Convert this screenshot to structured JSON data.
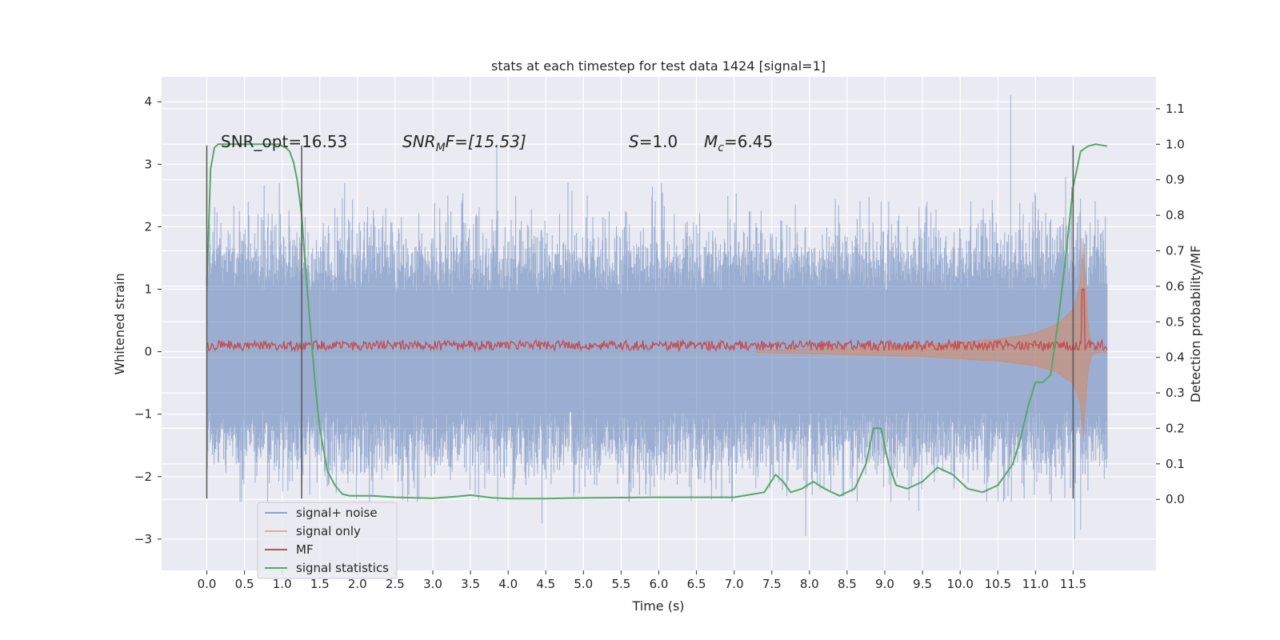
{
  "chart_data": {
    "type": "line",
    "title": "stats at each timestep for test data 1424 [signal=1]",
    "xlabel": "Time (s)",
    "ylabel_left": "Whitened strain",
    "ylabel_right": "Detection probability/MF",
    "xlim": [
      -0.6,
      12.6
    ],
    "ylim_left": [
      -3.5,
      4.4
    ],
    "ylim_right": [
      -0.2,
      1.19
    ],
    "x_ticks": [
      0.0,
      0.5,
      1.0,
      1.5,
      2.0,
      2.5,
      3.0,
      3.5,
      4.0,
      4.5,
      5.0,
      5.5,
      6.0,
      6.5,
      7.0,
      7.5,
      8.0,
      8.5,
      9.0,
      9.5,
      10.0,
      10.5,
      11.0,
      11.5
    ],
    "x_tick_labels": [
      "0.0",
      "0.5",
      "1.0",
      "1.5",
      "2.0",
      "2.5",
      "3.0",
      "3.5",
      "4.0",
      "4.5",
      "5.0",
      "5.5",
      "6.0",
      "6.5",
      "7.0",
      "7.5",
      "8.0",
      "8.5",
      "9.0",
      "9.5",
      "10.0",
      "10.5",
      "11.0",
      "11.5"
    ],
    "y_left_ticks": [
      -3,
      -2,
      -1,
      0,
      1,
      2,
      3,
      4
    ],
    "y_left_tick_labels": [
      "−3",
      "−2",
      "−1",
      "0",
      "1",
      "2",
      "3",
      "4"
    ],
    "y_right_ticks": [
      0.0,
      0.1,
      0.2,
      0.3,
      0.4,
      0.5,
      0.6,
      0.7,
      0.8,
      0.9,
      1.0,
      1.1
    ],
    "y_right_tick_labels": [
      "0.0",
      "0.1",
      "0.2",
      "0.3",
      "0.4",
      "0.5",
      "0.6",
      "0.7",
      "0.8",
      "0.9",
      "1.0",
      "1.1"
    ],
    "grid": true,
    "legend_position": "lower-left",
    "annotations": {
      "snr_opt": "SNR_opt=16.53",
      "snr_mf_name": "SNR",
      "snr_mf_sub": "M",
      "snr_mf_rest": "F=[15.53]",
      "s_name": "S",
      "s_rest": "=1.0",
      "mc_name": "M",
      "mc_sub": "c",
      "mc_rest": "=6.45"
    },
    "vlines": {
      "x": [
        0.0,
        1.26,
        11.5
      ],
      "ymin": -2.35,
      "ymax": 3.3
    },
    "series": [
      {
        "name": "signal+ noise",
        "axis": "left",
        "color": "#4c72b0",
        "style": "dense-noise",
        "t_range": [
          0.0,
          11.95
        ],
        "sigma": 0.75,
        "spikes": [
          [
            0.55,
            2.4
          ],
          [
            1.7,
            2.3
          ],
          [
            3.2,
            2.5
          ],
          [
            3.85,
            3.3
          ],
          [
            3.86,
            -2.4
          ],
          [
            4.45,
            -2.75
          ],
          [
            5.05,
            2.5
          ],
          [
            6.05,
            2.55
          ],
          [
            7.95,
            -2.95
          ],
          [
            8.95,
            2.4
          ],
          [
            9.45,
            -2.55
          ],
          [
            10.67,
            4.1
          ],
          [
            10.85,
            -2.35
          ],
          [
            11.4,
            2.8
          ],
          [
            11.52,
            -3.0
          ],
          [
            11.6,
            -2.85
          ]
        ]
      },
      {
        "name": "signal only",
        "axis": "left",
        "color": "#dd8452",
        "style": "chirp-envelope",
        "t_range": [
          0.0,
          11.95
        ],
        "envelope_points": [
          [
            7.3,
            0.02
          ],
          [
            8.5,
            0.06
          ],
          [
            9.5,
            0.11
          ],
          [
            10.5,
            0.2
          ],
          [
            11.0,
            0.3
          ],
          [
            11.3,
            0.45
          ],
          [
            11.5,
            0.68
          ],
          [
            11.6,
            1.1
          ],
          [
            11.63,
            1.85
          ],
          [
            11.66,
            1.2
          ],
          [
            11.7,
            0.4
          ],
          [
            11.75,
            0.05
          ],
          [
            11.95,
            0.0
          ]
        ]
      },
      {
        "name": "MF",
        "axis": "left",
        "color": "#c44e52",
        "style": "noisy-band",
        "t_range": [
          0.0,
          11.95
        ],
        "center": 0.1,
        "amplitude": 0.08,
        "peak": [
          11.63,
          1.0
        ]
      },
      {
        "name": "signal statistics",
        "axis": "right",
        "color": "#55a868",
        "style": "line",
        "x": [
          0.0,
          0.05,
          0.1,
          0.15,
          0.25,
          0.4,
          0.6,
          0.8,
          0.95,
          1.05,
          1.1,
          1.15,
          1.2,
          1.26,
          1.3,
          1.35,
          1.4,
          1.45,
          1.5,
          1.55,
          1.6,
          1.7,
          1.8,
          1.9,
          2.0,
          2.2,
          2.5,
          3.0,
          3.3,
          3.5,
          3.8,
          4.0,
          4.5,
          5.0,
          5.5,
          6.0,
          6.5,
          7.0,
          7.4,
          7.55,
          7.65,
          7.75,
          7.9,
          8.05,
          8.2,
          8.4,
          8.6,
          8.75,
          8.85,
          8.95,
          9.05,
          9.15,
          9.3,
          9.5,
          9.7,
          9.9,
          10.1,
          10.3,
          10.5,
          10.7,
          10.8,
          10.9,
          11.0,
          11.1,
          11.2,
          11.3,
          11.4,
          11.5,
          11.6,
          11.7,
          11.8,
          11.95
        ],
        "y": [
          0.6,
          0.93,
          0.99,
          1.0,
          1.0,
          1.0,
          1.0,
          1.0,
          1.0,
          0.99,
          0.98,
          0.95,
          0.9,
          0.8,
          0.68,
          0.55,
          0.42,
          0.3,
          0.2,
          0.14,
          0.08,
          0.04,
          0.015,
          0.01,
          0.01,
          0.01,
          0.006,
          0.003,
          0.008,
          0.012,
          0.004,
          0.002,
          0.002,
          0.004,
          0.005,
          0.006,
          0.006,
          0.006,
          0.02,
          0.07,
          0.05,
          0.02,
          0.03,
          0.05,
          0.03,
          0.01,
          0.03,
          0.1,
          0.2,
          0.2,
          0.1,
          0.04,
          0.03,
          0.05,
          0.09,
          0.07,
          0.03,
          0.02,
          0.04,
          0.1,
          0.17,
          0.26,
          0.33,
          0.33,
          0.35,
          0.5,
          0.68,
          0.88,
          0.98,
          0.995,
          1.0,
          0.995
        ]
      }
    ]
  }
}
